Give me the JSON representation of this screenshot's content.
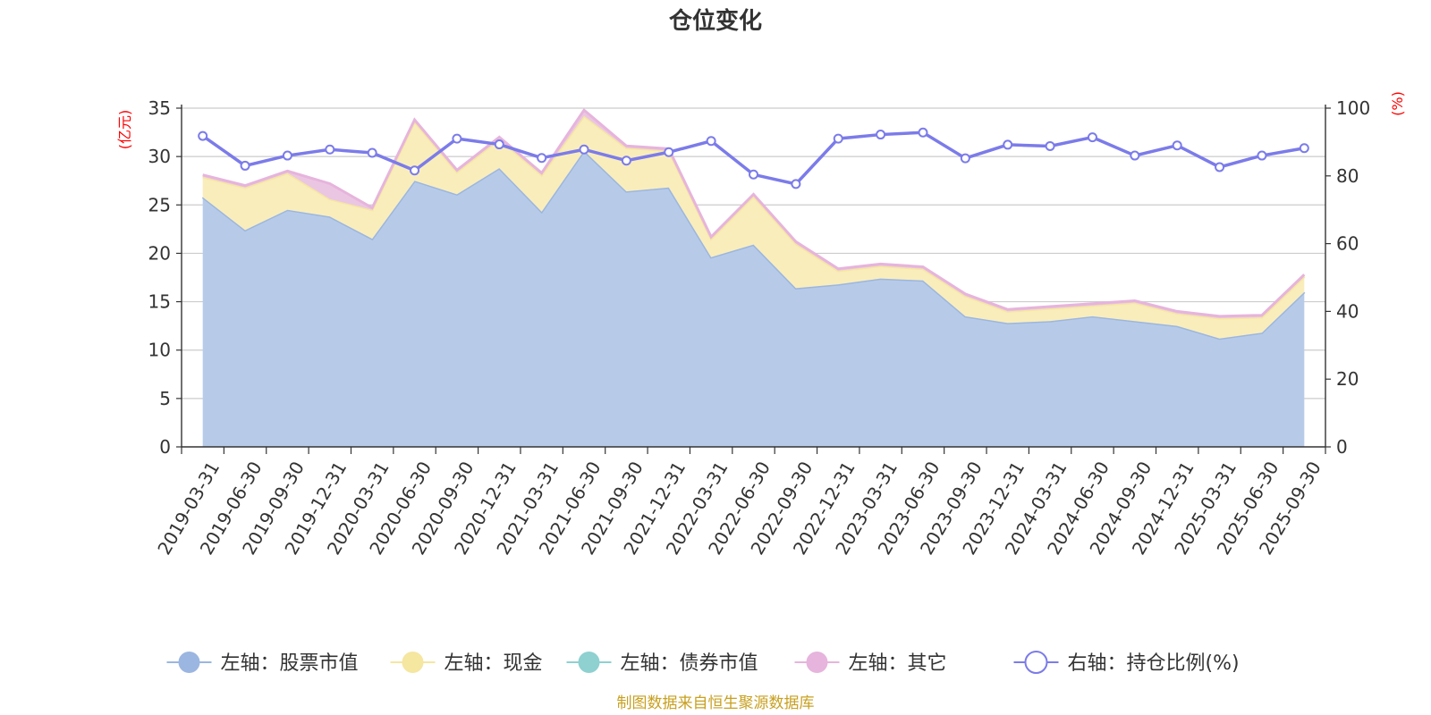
{
  "title": "仓位变化",
  "source_note": "制图数据来自恒生聚源数据库",
  "chart_data": {
    "type": "area",
    "categories": [
      "2019-03-31",
      "2019-06-30",
      "2019-09-30",
      "2019-12-31",
      "2020-03-31",
      "2020-06-30",
      "2020-09-30",
      "2020-12-31",
      "2021-03-31",
      "2021-06-30",
      "2021-09-30",
      "2021-12-31",
      "2022-03-31",
      "2022-06-30",
      "2022-09-30",
      "2022-12-31",
      "2023-03-31",
      "2023-06-30",
      "2023-09-30",
      "2023-12-31",
      "2024-03-31",
      "2024-06-30",
      "2024-09-30",
      "2024-12-31",
      "2025-03-31",
      "2025-06-30",
      "2025-09-30"
    ],
    "left_axis": {
      "label": "(亿元)",
      "min": 0,
      "max": 35,
      "ticks": [
        0,
        5,
        10,
        15,
        20,
        25,
        30,
        35
      ]
    },
    "right_axis": {
      "label": "(%)",
      "min": 0,
      "max": 100,
      "ticks": [
        0,
        20,
        40,
        60,
        80,
        100
      ]
    },
    "series": [
      {
        "name": "左轴：股票市值",
        "axis": "left",
        "type": "area",
        "color": "#9bb6e0",
        "fill": "#b7cbe9",
        "values": [
          25.8,
          22.4,
          24.5,
          23.8,
          21.5,
          27.5,
          26.1,
          28.8,
          24.3,
          30.6,
          26.4,
          26.8,
          19.6,
          20.9,
          16.4,
          16.8,
          17.4,
          17.2,
          13.5,
          12.8,
          13.0,
          13.5,
          13.0,
          12.5,
          11.2,
          11.8,
          16.0
        ]
      },
      {
        "name": "左轴：现金",
        "axis": "left",
        "type": "area",
        "color": "#f5e6a0",
        "fill": "#f9edbc",
        "values": [
          2.1,
          4.4,
          3.8,
          1.8,
          3.0,
          6.1,
          2.3,
          3.0,
          3.8,
          3.6,
          4.5,
          3.8,
          1.9,
          5.0,
          4.6,
          1.4,
          1.3,
          1.2,
          2.1,
          1.2,
          1.3,
          1.1,
          1.9,
          1.3,
          2.1,
          1.6,
          1.6
        ]
      },
      {
        "name": "左轴：债券市值",
        "axis": "left",
        "type": "area",
        "color": "#8fd0d0",
        "fill": "#a8dada",
        "values": [
          0,
          0,
          0,
          0,
          0,
          0,
          0,
          0,
          0,
          0,
          0,
          0,
          0,
          0,
          0,
          0,
          0,
          0,
          0,
          0,
          0,
          0,
          0,
          0,
          0,
          0,
          0
        ]
      },
      {
        "name": "左轴：其它",
        "axis": "left",
        "type": "area",
        "color": "#e6b4dc",
        "fill": "#ebc6e3",
        "values": [
          0.2,
          0.2,
          0.2,
          1.6,
          0.2,
          0.2,
          0.2,
          0.2,
          0.2,
          0.6,
          0.2,
          0.2,
          0.2,
          0.2,
          0.2,
          0.2,
          0.2,
          0.2,
          0.2,
          0.2,
          0.2,
          0.2,
          0.2,
          0.2,
          0.2,
          0.2,
          0.2
        ]
      },
      {
        "name": "右轴：持仓比例(%)",
        "axis": "right",
        "type": "line",
        "color": "#7b7bea",
        "values": [
          91.8,
          83.0,
          86.0,
          87.8,
          86.8,
          81.6,
          91.0,
          89.3,
          85.3,
          87.8,
          84.5,
          87.0,
          90.3,
          80.4,
          77.6,
          91.0,
          92.2,
          92.8,
          85.2,
          89.2,
          88.8,
          91.4,
          86.0,
          89.0,
          82.6,
          86.0,
          88.2
        ]
      }
    ]
  }
}
